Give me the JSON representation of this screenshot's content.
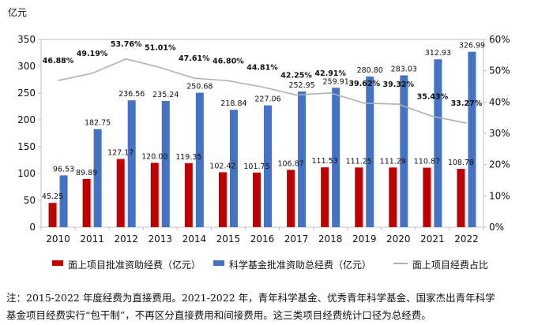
{
  "chart_data": {
    "type": "bar",
    "title": "",
    "ylabel": "亿元",
    "ylim": [
      0,
      350
    ],
    "y_ticks": [
      "0",
      "50",
      "100",
      "150",
      "200",
      "250",
      "300",
      "350"
    ],
    "y2lim": [
      0,
      60
    ],
    "y2_ticks": [
      "0%",
      "10%",
      "20%",
      "30%",
      "40%",
      "50%",
      "60%"
    ],
    "categories": [
      "2010",
      "2011",
      "2012",
      "2013",
      "2014",
      "2015",
      "2016",
      "2017",
      "2018",
      "2019",
      "2020",
      "2021",
      "2022"
    ],
    "series": [
      {
        "name": "面上项目批准资助经费（亿元）",
        "kind": "bar",
        "axis": "left",
        "color": "#c00000",
        "values": [
          45.25,
          89.89,
          127.17,
          120.0,
          119.35,
          102.42,
          101.75,
          106.87,
          111.53,
          111.25,
          111.29,
          110.87,
          108.78
        ],
        "labels": [
          "45.25",
          "89.89",
          "127.17",
          "120.00",
          "119.35",
          "102.42",
          "101.75",
          "106.87",
          "111.53",
          "111.25",
          "111.29",
          "110.87",
          "108.78"
        ]
      },
      {
        "name": "科学基金批准资助总经费（亿元）",
        "kind": "bar",
        "axis": "left",
        "color": "#4472c4",
        "values": [
          96.53,
          182.75,
          236.56,
          235.24,
          250.68,
          218.84,
          227.06,
          252.95,
          259.91,
          280.8,
          283.03,
          312.93,
          326.99
        ],
        "labels": [
          "96.53",
          "182.75",
          "236.56",
          "235.24",
          "250.68",
          "218.84",
          "227.06",
          "252.95",
          "259.91",
          "280.80",
          "283.03",
          "312.93",
          "326.99"
        ]
      },
      {
        "name": "面上项目经费占比",
        "kind": "line",
        "axis": "right",
        "color": "#b0b0b0",
        "values": [
          46.88,
          49.19,
          53.76,
          51.01,
          47.61,
          46.8,
          44.81,
          42.25,
          42.91,
          39.62,
          39.32,
          35.43,
          33.27
        ],
        "labels": [
          "46.88%",
          "49.19%",
          "53.76%",
          "51.01%",
          "47.61%",
          "46.80%",
          "44.81%",
          "42.25%",
          "42.91%",
          "39.62%",
          "39.32%",
          "35.43%",
          "33.27%"
        ]
      }
    ],
    "legend": "bottom"
  },
  "footnote": {
    "line1": "注：2015-2022 年度经费为直接费用。2021-2022 年，青年科学基金、优秀青年科学基金、国家杰出青年科学",
    "line2": "基金项目经费实行“包干制”，不再区分直接费用和间接费用。这三类项目经费统计口径为总经费。"
  }
}
